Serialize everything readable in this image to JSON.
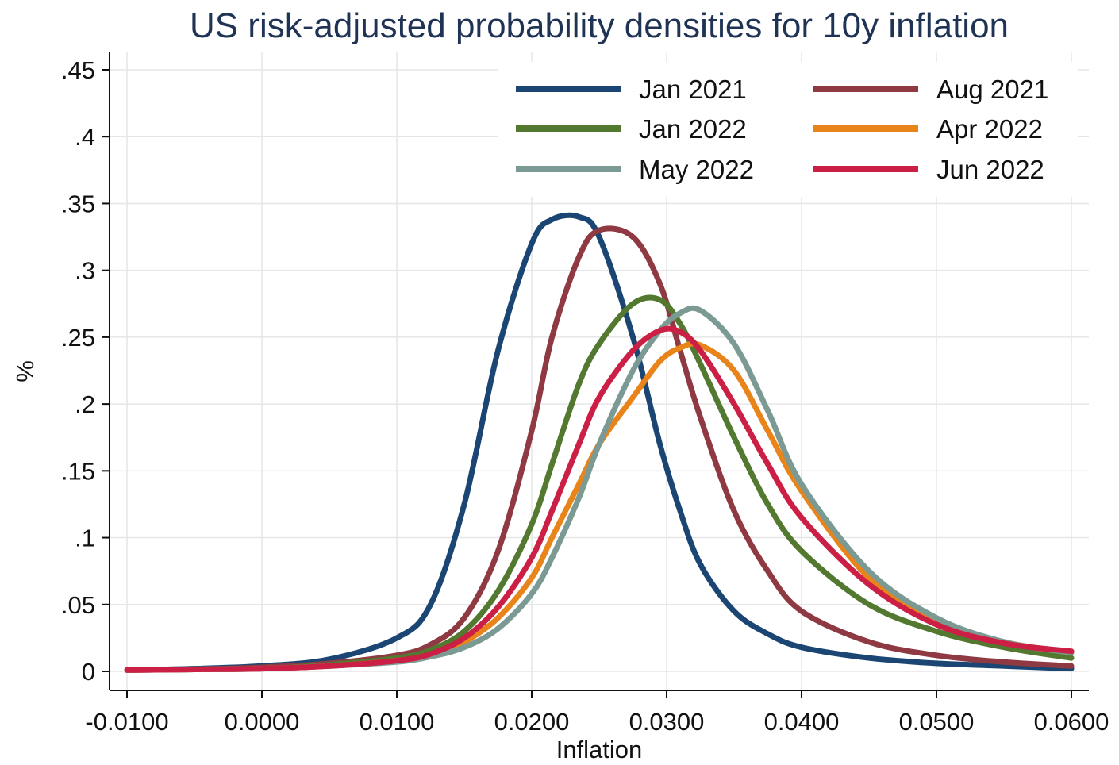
{
  "chart_data": {
    "type": "line",
    "title": "US risk-adjusted probability densities for 10y inflation",
    "xlabel": "Inflation",
    "ylabel": "%",
    "xlim": [
      -0.01,
      0.06
    ],
    "ylim": [
      0,
      0.45
    ],
    "xticks": [
      -0.01,
      0.0,
      0.01,
      0.02,
      0.03,
      0.04,
      0.05,
      0.06
    ],
    "xtick_labels": [
      "-0.0100",
      "0.0000",
      "0.0100",
      "0.0200",
      "0.0300",
      "0.0400",
      "0.0500",
      "0.0600"
    ],
    "yticks": [
      0,
      0.05,
      0.1,
      0.15,
      0.2,
      0.25,
      0.3,
      0.35,
      0.4,
      0.45
    ],
    "ytick_labels": [
      "0",
      ".05",
      ".1",
      ".15",
      ".2",
      ".25",
      ".3",
      ".35",
      ".4",
      ".45"
    ],
    "grid": true,
    "legend_position": "top-right",
    "x": [
      -0.01,
      -0.005,
      0.0,
      0.005,
      0.01,
      0.0125,
      0.015,
      0.0175,
      0.02,
      0.0215,
      0.0235,
      0.025,
      0.0275,
      0.0295,
      0.031,
      0.0325,
      0.035,
      0.0375,
      0.04,
      0.045,
      0.05,
      0.055,
      0.06
    ],
    "series": [
      {
        "name": "Jan 2021",
        "color": "#1b4673",
        "values": [
          0.001,
          0.002,
          0.004,
          0.009,
          0.025,
          0.05,
          0.125,
          0.24,
          0.32,
          0.338,
          0.34,
          0.325,
          0.25,
          0.17,
          0.12,
          0.08,
          0.045,
          0.028,
          0.018,
          0.01,
          0.006,
          0.004,
          0.002
        ]
      },
      {
        "name": "Aug 2021",
        "color": "#8f3a42",
        "values": [
          0.001,
          0.0015,
          0.003,
          0.006,
          0.012,
          0.02,
          0.04,
          0.09,
          0.18,
          0.25,
          0.31,
          0.33,
          0.325,
          0.29,
          0.24,
          0.19,
          0.12,
          0.075,
          0.045,
          0.022,
          0.012,
          0.007,
          0.004
        ]
      },
      {
        "name": "Jan 2022",
        "color": "#53782f",
        "values": [
          0.001,
          0.0015,
          0.002,
          0.005,
          0.01,
          0.016,
          0.03,
          0.06,
          0.11,
          0.155,
          0.215,
          0.245,
          0.275,
          0.278,
          0.26,
          0.23,
          0.175,
          0.125,
          0.09,
          0.05,
          0.03,
          0.018,
          0.01
        ]
      },
      {
        "name": "Apr 2022",
        "color": "#e8841a",
        "values": [
          0.001,
          0.0015,
          0.002,
          0.004,
          0.008,
          0.012,
          0.022,
          0.04,
          0.07,
          0.1,
          0.14,
          0.17,
          0.205,
          0.232,
          0.242,
          0.244,
          0.225,
          0.18,
          0.135,
          0.07,
          0.038,
          0.022,
          0.014
        ]
      },
      {
        "name": "May 2022",
        "color": "#7c9a94",
        "values": [
          0.001,
          0.0015,
          0.002,
          0.004,
          0.007,
          0.011,
          0.018,
          0.032,
          0.058,
          0.085,
          0.13,
          0.17,
          0.225,
          0.255,
          0.268,
          0.27,
          0.245,
          0.195,
          0.14,
          0.075,
          0.04,
          0.022,
          0.014
        ]
      },
      {
        "name": "Jun 2022",
        "color": "#cc1f45",
        "values": [
          0.001,
          0.0015,
          0.002,
          0.004,
          0.008,
          0.013,
          0.025,
          0.048,
          0.085,
          0.12,
          0.17,
          0.205,
          0.24,
          0.255,
          0.254,
          0.24,
          0.2,
          0.155,
          0.115,
          0.065,
          0.035,
          0.021,
          0.015
        ]
      }
    ]
  }
}
